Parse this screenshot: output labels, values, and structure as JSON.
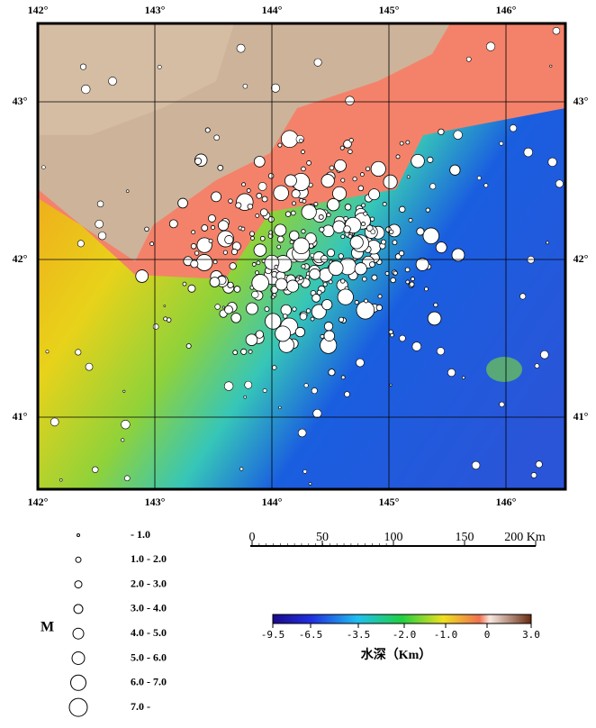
{
  "map": {
    "lon_ticks": [
      {
        "value": 142,
        "label": "142°"
      },
      {
        "value": 143,
        "label": "143°"
      },
      {
        "value": 144,
        "label": "144°"
      },
      {
        "value": 145,
        "label": "145°"
      },
      {
        "value": 146,
        "label": "146°"
      }
    ],
    "lat_ticks": [
      {
        "value": 43,
        "label": "43°"
      },
      {
        "value": 42,
        "label": "42°"
      },
      {
        "value": 41,
        "label": "41°"
      }
    ]
  },
  "magnitude_legend": {
    "title": "M",
    "items": [
      "- 1.0",
      "1.0 - 2.0",
      "2.0 - 3.0",
      "3.0 - 4.0",
      "4.0 - 5.0",
      "5.0 - 6.0",
      "6.0 - 7.0",
      "7.0 -"
    ]
  },
  "scale_bar": {
    "ticks": [
      "0",
      "50",
      "100",
      "150",
      "200 Km"
    ]
  },
  "depth_colorbar": {
    "title": "水深（Km）",
    "ticks": [
      "-9.5",
      "-6.5",
      "-3.5",
      "-2.0",
      "-1.0",
      "0",
      "3.0"
    ]
  }
}
